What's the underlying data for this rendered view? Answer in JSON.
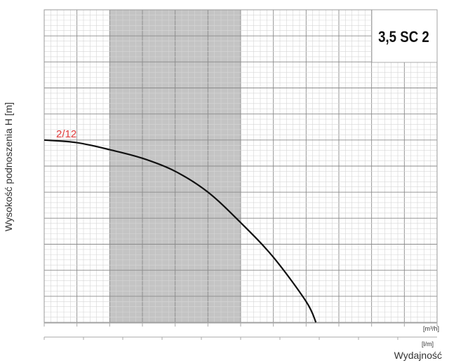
{
  "chart_data": {
    "type": "line",
    "title": "3,5 SC 2",
    "ylabel": "Wysokość podnoszenia H [m]",
    "xlabel": "Wydajność",
    "x_unit": "[m³/h]",
    "x2_unit": "[l/m]",
    "xlim": [
      0,
      6.0
    ],
    "ylim": [
      0,
      120
    ],
    "x_ticks": [
      "0",
      "1.0",
      "2.0",
      "3.0",
      "4.0",
      "5.0"
    ],
    "x_tick_values": [
      0,
      1,
      2,
      3,
      4,
      5
    ],
    "x2_ticks": [
      "0",
      "10",
      "20",
      "30",
      "40",
      "50",
      "60",
      "70",
      "80",
      "90"
    ],
    "x2_tick_values": [
      0,
      10,
      20,
      30,
      40,
      50,
      60,
      70,
      80,
      90
    ],
    "y_ticks": [
      "0",
      "20",
      "40",
      "60",
      "80",
      "100",
      "120"
    ],
    "y_tick_values": [
      0,
      20,
      40,
      60,
      80,
      100,
      120
    ],
    "grid": true,
    "shaded_range": [
      1.0,
      3.0
    ],
    "shade_color": "#c4c4c4",
    "series": [
      {
        "name": "2/12",
        "color": "#111111",
        "label_color": "#e03a3a",
        "x": [
          0,
          0.5,
          1.0,
          1.5,
          2.0,
          2.5,
          3.0,
          3.5,
          4.0,
          4.15
        ],
        "y": [
          70,
          69,
          66.3,
          63,
          58,
          50,
          38.3,
          25,
          8,
          0
        ]
      }
    ]
  }
}
